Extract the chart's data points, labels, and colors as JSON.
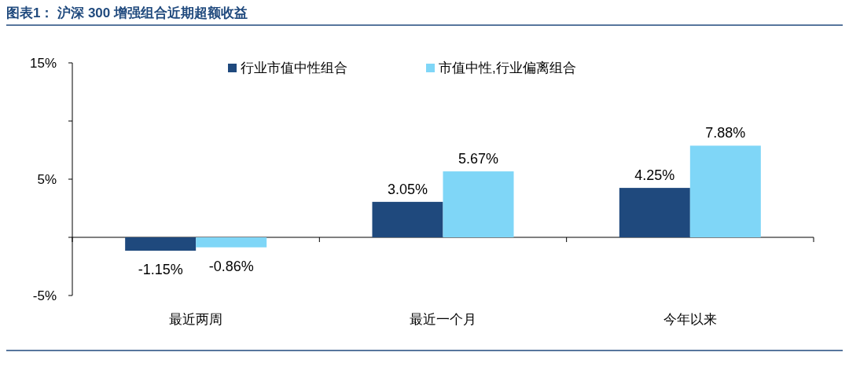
{
  "chart_data": {
    "type": "bar",
    "title": "图表1： 沪深 300 增强组合近期超额收益",
    "categories": [
      "最近两周",
      "最近一个月",
      "今年以来"
    ],
    "series": [
      {
        "name": "行业市值中性组合",
        "color": "#1f497d",
        "values": [
          -1.15,
          3.05,
          4.25
        ],
        "value_labels": [
          "-1.15%",
          "3.05%",
          "4.25%"
        ]
      },
      {
        "name": "市值中性,行业偏离组合",
        "color": "#7fd6f7",
        "values": [
          -0.86,
          5.67,
          7.88
        ],
        "value_labels": [
          "-0.86%",
          "5.67%",
          "7.88%"
        ]
      }
    ],
    "ylim": [
      -5,
      15
    ],
    "yticks": [
      {
        "value": -5,
        "label": "-5%"
      },
      {
        "value": 0,
        "label": null
      },
      {
        "value": 5,
        "label": "5%"
      },
      {
        "value": 10,
        "label": null
      },
      {
        "value": 15,
        "label": "15%"
      }
    ],
    "legend": "top"
  }
}
